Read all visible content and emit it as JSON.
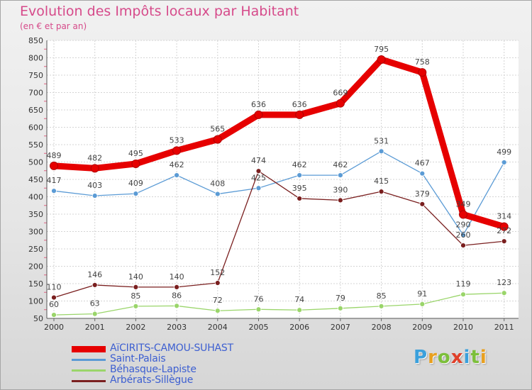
{
  "title": "Evolution des Impôts locaux par Habitant",
  "subtitle": "(en € et par an)",
  "logo": {
    "letters": [
      "P",
      "r",
      "o",
      "x",
      "i",
      "t",
      "i"
    ],
    "colors": [
      "#3aa0dc",
      "#e8a020",
      "#7cbf3a",
      "#e0402a",
      "#3aa0dc",
      "#7cbf3a",
      "#e8a020"
    ]
  },
  "chart_data": {
    "type": "line",
    "x": [
      "2000",
      "2001",
      "2002",
      "2003",
      "2004",
      "2005",
      "2006",
      "2007",
      "2008",
      "2009",
      "2010",
      "2011"
    ],
    "ylim": [
      50,
      850
    ],
    "yticks": [
      "50",
      "100",
      "150",
      "200",
      "250",
      "300",
      "350",
      "400",
      "450",
      "500",
      "550",
      "600",
      "650",
      "700",
      "750",
      "800",
      "850"
    ],
    "grid": true,
    "legend_position": "bottom-left",
    "series": [
      {
        "name": "AïCIRITS-CAMOU-SUHAST",
        "color": "#e60000",
        "values": [
          489,
          482,
          495,
          533,
          565,
          636,
          636,
          669,
          795,
          758,
          349,
          314
        ],
        "labels": [
          "489",
          "482",
          "495",
          "533",
          "565",
          "636",
          "636",
          "669",
          "795",
          "758",
          "349",
          "314"
        ]
      },
      {
        "name": "Saint-Palais",
        "color": "#5b9bd5",
        "values": [
          417,
          403,
          409,
          462,
          408,
          425,
          462,
          462,
          531,
          467,
          290,
          499
        ],
        "labels": [
          "417",
          "403",
          "409",
          "462",
          "408",
          "425",
          "462",
          "462",
          "531",
          "467",
          "290",
          "499"
        ]
      },
      {
        "name": "Béhasque-Lapiste",
        "color": "#9ad56a",
        "values": [
          60,
          63,
          85,
          86,
          72,
          76,
          74,
          79,
          85,
          91,
          119,
          123
        ],
        "labels": [
          "60",
          "63",
          "85",
          "86",
          "72",
          "76",
          "74",
          "79",
          "85",
          "91",
          "119",
          "123"
        ]
      },
      {
        "name": "Arbérats-Sillègue",
        "color": "#7a1f1f",
        "values": [
          110,
          146,
          140,
          140,
          152,
          474,
          395,
          390,
          415,
          379,
          260,
          272
        ],
        "labels": [
          "110",
          "146",
          "140",
          "140",
          "152",
          "474",
          "395",
          "390",
          "415",
          "379",
          "260",
          "272"
        ]
      }
    ]
  }
}
